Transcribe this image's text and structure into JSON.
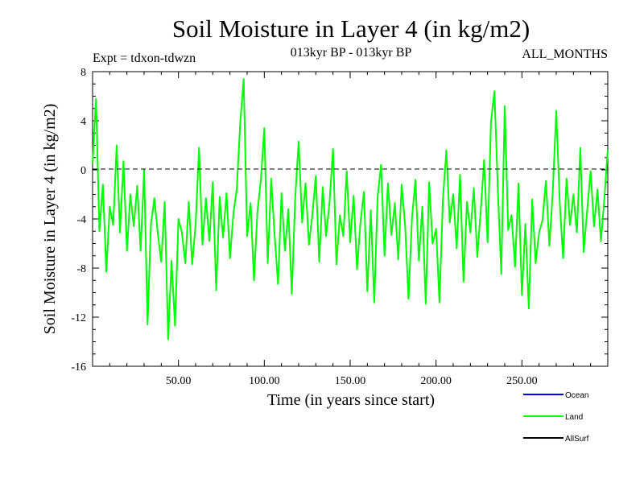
{
  "chart_data": {
    "type": "line",
    "title": "Soil Moisture in Layer 4 (in kg/m2)",
    "subtitle": "013kyr BP - 013kyr BP",
    "experiment_label": "Expt = tdxon-tdwzn",
    "period_label": "ALL_MONTHS",
    "xlabel": "Time (in years since start)",
    "ylabel": "Soil Moisture in Layer 4 (in kg/m2)",
    "xlim": [
      0,
      300
    ],
    "ylim": [
      -16,
      8
    ],
    "x_ticks": [
      {
        "value": 50,
        "label": "50.00"
      },
      {
        "value": 100,
        "label": "100.00"
      },
      {
        "value": 150,
        "label": "150.00"
      },
      {
        "value": 200,
        "label": "200.00"
      },
      {
        "value": 250,
        "label": "250.00"
      }
    ],
    "y_ticks": [
      {
        "value": 8,
        "label": "8"
      },
      {
        "value": 4,
        "label": "4"
      },
      {
        "value": 0,
        "label": "0"
      },
      {
        "value": -4,
        "label": "-4"
      },
      {
        "value": -8,
        "label": "-8"
      },
      {
        "value": -12,
        "label": "-12"
      },
      {
        "value": -16,
        "label": "-16"
      }
    ],
    "reference_line": {
      "y": 0,
      "style": "dashed",
      "color": "#000000"
    },
    "legend": {
      "placement": "bottom-right",
      "entries": [
        {
          "name": "Ocean",
          "color": "#0000ff"
        },
        {
          "name": "Land",
          "color": "#00ff00"
        },
        {
          "name": "AllSurf",
          "color": "#000000"
        }
      ]
    },
    "series": [
      {
        "name": "Land",
        "color": "#00ff00",
        "x": [
          0,
          2,
          4,
          6,
          8,
          10,
          12,
          14,
          16,
          18,
          20,
          22,
          24,
          26,
          28,
          30,
          32,
          34,
          36,
          38,
          40,
          42,
          44,
          46,
          48,
          50,
          52,
          54,
          56,
          58,
          60,
          62,
          64,
          66,
          68,
          70,
          72,
          74,
          76,
          78,
          80,
          82,
          84,
          86,
          88,
          90,
          92,
          94,
          96,
          98,
          100,
          102,
          104,
          106,
          108,
          110,
          112,
          114,
          116,
          118,
          120,
          122,
          124,
          126,
          128,
          130,
          132,
          134,
          136,
          138,
          140,
          142,
          144,
          146,
          148,
          150,
          152,
          154,
          156,
          158,
          160,
          162,
          164,
          166,
          168,
          170,
          172,
          174,
          176,
          178,
          180,
          182,
          184,
          186,
          188,
          190,
          192,
          194,
          196,
          198,
          200,
          202,
          204,
          206,
          208,
          210,
          212,
          214,
          216,
          218,
          220,
          222,
          224,
          226,
          228,
          230,
          232,
          234,
          236,
          238,
          240,
          242,
          244,
          246,
          248,
          250,
          252,
          254,
          256,
          258,
          260,
          262,
          264,
          266,
          268,
          270,
          272,
          274,
          276,
          278,
          280,
          282,
          284,
          286,
          288,
          290,
          292,
          294,
          296,
          298,
          300
        ],
        "values": [
          0.5,
          5.8,
          -5.0,
          -1.2,
          -8.3,
          -3.0,
          -4.5,
          2.0,
          -5.1,
          0.7,
          -6.6,
          -2.0,
          -4.6,
          -1.3,
          -6.6,
          0.0,
          -12.6,
          -4.4,
          -2.3,
          -5.2,
          -7.5,
          -2.6,
          -13.8,
          -7.4,
          -12.7,
          -4.0,
          -5.1,
          -7.6,
          -2.6,
          -7.7,
          -4.5,
          1.8,
          -6.1,
          -2.3,
          -5.8,
          -1.0,
          -9.8,
          -2.2,
          -5.5,
          -1.9,
          -7.2,
          -3.6,
          -1.5,
          3.9,
          7.4,
          -5.4,
          -2.7,
          -9.0,
          -3.4,
          -0.8,
          3.4,
          -7.6,
          -0.7,
          -5.3,
          -9.3,
          -1.9,
          -6.6,
          -3.2,
          -10.1,
          -2.3,
          2.3,
          -4.3,
          -1.1,
          -6.1,
          -3.6,
          -0.5,
          -7.5,
          -1.4,
          -5.4,
          -2.6,
          1.7,
          -7.7,
          -3.7,
          -5.4,
          -0.1,
          -5.9,
          -2.1,
          -8.1,
          -4.3,
          -1.8,
          -9.9,
          -3.3,
          -10.8,
          -2.2,
          0.4,
          -7.0,
          -1.1,
          -5.3,
          -2.7,
          -7.3,
          -1.2,
          -4.6,
          -10.5,
          -3.9,
          -0.8,
          -7.4,
          -3.0,
          -10.9,
          -1.0,
          -6.0,
          -4.8,
          -10.8,
          -2.4,
          1.6,
          -4.3,
          -2.0,
          -6.4,
          -0.4,
          -9.1,
          -2.6,
          -5.1,
          -1.5,
          -7.1,
          -3.4,
          0.8,
          -5.9,
          3.9,
          6.4,
          -1.7,
          -8.5,
          5.2,
          -4.9,
          -3.7,
          -7.9,
          -1.1,
          -10.2,
          -4.4,
          -11.3,
          -2.4,
          -7.6,
          -5.1,
          -4.1,
          -0.9,
          -6.2,
          -1.7,
          4.8,
          -2.6,
          -7.2,
          -0.7,
          -4.5,
          -2.0,
          -5.1,
          1.8,
          -6.7,
          -3.3,
          -0.1,
          -4.6,
          -1.6,
          -5.8,
          -2.4,
          1.6
        ]
      },
      {
        "name": "Ocean",
        "color": "#0000ff",
        "x": [],
        "values": []
      },
      {
        "name": "AllSurf",
        "color": "#000000",
        "x": [],
        "values": []
      }
    ]
  }
}
